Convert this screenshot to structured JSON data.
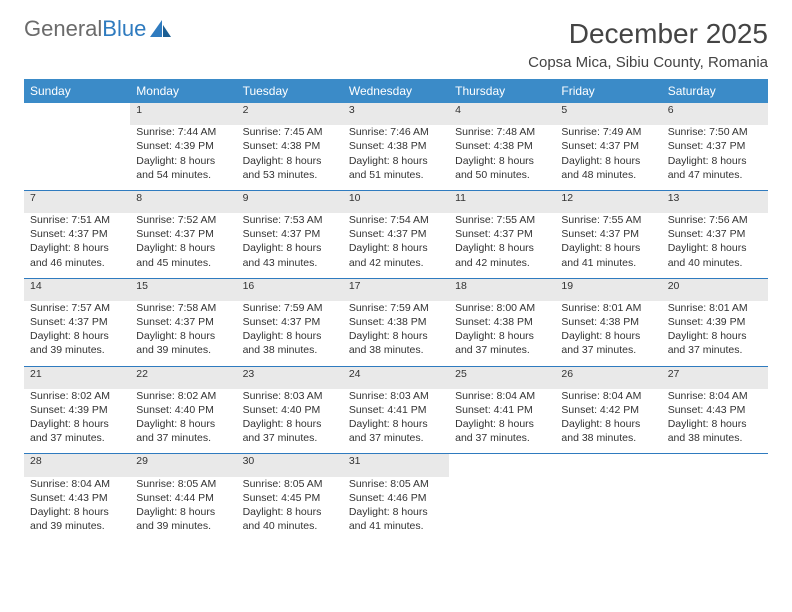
{
  "brand": {
    "part1": "General",
    "part2": "Blue"
  },
  "title": "December 2025",
  "location": "Copsa Mica, Sibiu County, Romania",
  "colors": {
    "header_bg": "#3b8bc8",
    "rule": "#2f7bbf",
    "daynum_bg": "#e9e9e9",
    "text": "#333333",
    "brand_gray": "#6b6b6b",
    "brand_blue": "#2f7bbf"
  },
  "day_headers": [
    "Sunday",
    "Monday",
    "Tuesday",
    "Wednesday",
    "Thursday",
    "Friday",
    "Saturday"
  ],
  "weeks": [
    {
      "nums": [
        "",
        "1",
        "2",
        "3",
        "4",
        "5",
        "6"
      ],
      "cells": [
        null,
        {
          "sunrise": "Sunrise: 7:44 AM",
          "sunset": "Sunset: 4:39 PM",
          "day1": "Daylight: 8 hours",
          "day2": "and 54 minutes."
        },
        {
          "sunrise": "Sunrise: 7:45 AM",
          "sunset": "Sunset: 4:38 PM",
          "day1": "Daylight: 8 hours",
          "day2": "and 53 minutes."
        },
        {
          "sunrise": "Sunrise: 7:46 AM",
          "sunset": "Sunset: 4:38 PM",
          "day1": "Daylight: 8 hours",
          "day2": "and 51 minutes."
        },
        {
          "sunrise": "Sunrise: 7:48 AM",
          "sunset": "Sunset: 4:38 PM",
          "day1": "Daylight: 8 hours",
          "day2": "and 50 minutes."
        },
        {
          "sunrise": "Sunrise: 7:49 AM",
          "sunset": "Sunset: 4:37 PM",
          "day1": "Daylight: 8 hours",
          "day2": "and 48 minutes."
        },
        {
          "sunrise": "Sunrise: 7:50 AM",
          "sunset": "Sunset: 4:37 PM",
          "day1": "Daylight: 8 hours",
          "day2": "and 47 minutes."
        }
      ]
    },
    {
      "nums": [
        "7",
        "8",
        "9",
        "10",
        "11",
        "12",
        "13"
      ],
      "cells": [
        {
          "sunrise": "Sunrise: 7:51 AM",
          "sunset": "Sunset: 4:37 PM",
          "day1": "Daylight: 8 hours",
          "day2": "and 46 minutes."
        },
        {
          "sunrise": "Sunrise: 7:52 AM",
          "sunset": "Sunset: 4:37 PM",
          "day1": "Daylight: 8 hours",
          "day2": "and 45 minutes."
        },
        {
          "sunrise": "Sunrise: 7:53 AM",
          "sunset": "Sunset: 4:37 PM",
          "day1": "Daylight: 8 hours",
          "day2": "and 43 minutes."
        },
        {
          "sunrise": "Sunrise: 7:54 AM",
          "sunset": "Sunset: 4:37 PM",
          "day1": "Daylight: 8 hours",
          "day2": "and 42 minutes."
        },
        {
          "sunrise": "Sunrise: 7:55 AM",
          "sunset": "Sunset: 4:37 PM",
          "day1": "Daylight: 8 hours",
          "day2": "and 42 minutes."
        },
        {
          "sunrise": "Sunrise: 7:55 AM",
          "sunset": "Sunset: 4:37 PM",
          "day1": "Daylight: 8 hours",
          "day2": "and 41 minutes."
        },
        {
          "sunrise": "Sunrise: 7:56 AM",
          "sunset": "Sunset: 4:37 PM",
          "day1": "Daylight: 8 hours",
          "day2": "and 40 minutes."
        }
      ]
    },
    {
      "nums": [
        "14",
        "15",
        "16",
        "17",
        "18",
        "19",
        "20"
      ],
      "cells": [
        {
          "sunrise": "Sunrise: 7:57 AM",
          "sunset": "Sunset: 4:37 PM",
          "day1": "Daylight: 8 hours",
          "day2": "and 39 minutes."
        },
        {
          "sunrise": "Sunrise: 7:58 AM",
          "sunset": "Sunset: 4:37 PM",
          "day1": "Daylight: 8 hours",
          "day2": "and 39 minutes."
        },
        {
          "sunrise": "Sunrise: 7:59 AM",
          "sunset": "Sunset: 4:37 PM",
          "day1": "Daylight: 8 hours",
          "day2": "and 38 minutes."
        },
        {
          "sunrise": "Sunrise: 7:59 AM",
          "sunset": "Sunset: 4:38 PM",
          "day1": "Daylight: 8 hours",
          "day2": "and 38 minutes."
        },
        {
          "sunrise": "Sunrise: 8:00 AM",
          "sunset": "Sunset: 4:38 PM",
          "day1": "Daylight: 8 hours",
          "day2": "and 37 minutes."
        },
        {
          "sunrise": "Sunrise: 8:01 AM",
          "sunset": "Sunset: 4:38 PM",
          "day1": "Daylight: 8 hours",
          "day2": "and 37 minutes."
        },
        {
          "sunrise": "Sunrise: 8:01 AM",
          "sunset": "Sunset: 4:39 PM",
          "day1": "Daylight: 8 hours",
          "day2": "and 37 minutes."
        }
      ]
    },
    {
      "nums": [
        "21",
        "22",
        "23",
        "24",
        "25",
        "26",
        "27"
      ],
      "cells": [
        {
          "sunrise": "Sunrise: 8:02 AM",
          "sunset": "Sunset: 4:39 PM",
          "day1": "Daylight: 8 hours",
          "day2": "and 37 minutes."
        },
        {
          "sunrise": "Sunrise: 8:02 AM",
          "sunset": "Sunset: 4:40 PM",
          "day1": "Daylight: 8 hours",
          "day2": "and 37 minutes."
        },
        {
          "sunrise": "Sunrise: 8:03 AM",
          "sunset": "Sunset: 4:40 PM",
          "day1": "Daylight: 8 hours",
          "day2": "and 37 minutes."
        },
        {
          "sunrise": "Sunrise: 8:03 AM",
          "sunset": "Sunset: 4:41 PM",
          "day1": "Daylight: 8 hours",
          "day2": "and 37 minutes."
        },
        {
          "sunrise": "Sunrise: 8:04 AM",
          "sunset": "Sunset: 4:41 PM",
          "day1": "Daylight: 8 hours",
          "day2": "and 37 minutes."
        },
        {
          "sunrise": "Sunrise: 8:04 AM",
          "sunset": "Sunset: 4:42 PM",
          "day1": "Daylight: 8 hours",
          "day2": "and 38 minutes."
        },
        {
          "sunrise": "Sunrise: 8:04 AM",
          "sunset": "Sunset: 4:43 PM",
          "day1": "Daylight: 8 hours",
          "day2": "and 38 minutes."
        }
      ]
    },
    {
      "nums": [
        "28",
        "29",
        "30",
        "31",
        "",
        "",
        ""
      ],
      "cells": [
        {
          "sunrise": "Sunrise: 8:04 AM",
          "sunset": "Sunset: 4:43 PM",
          "day1": "Daylight: 8 hours",
          "day2": "and 39 minutes."
        },
        {
          "sunrise": "Sunrise: 8:05 AM",
          "sunset": "Sunset: 4:44 PM",
          "day1": "Daylight: 8 hours",
          "day2": "and 39 minutes."
        },
        {
          "sunrise": "Sunrise: 8:05 AM",
          "sunset": "Sunset: 4:45 PM",
          "day1": "Daylight: 8 hours",
          "day2": "and 40 minutes."
        },
        {
          "sunrise": "Sunrise: 8:05 AM",
          "sunset": "Sunset: 4:46 PM",
          "day1": "Daylight: 8 hours",
          "day2": "and 41 minutes."
        },
        null,
        null,
        null
      ]
    }
  ]
}
